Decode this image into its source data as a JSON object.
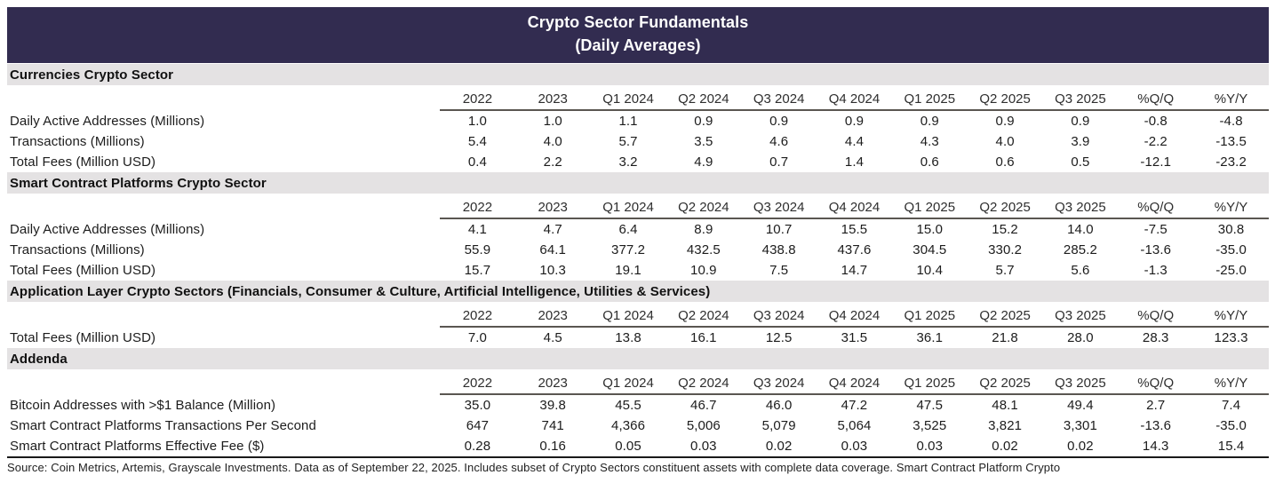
{
  "title": {
    "line1": "Crypto Sector Fundamentals",
    "line2": "(Daily Averages)"
  },
  "chart_data": {
    "type": "table",
    "title": "Crypto Sector Fundamentals (Daily Averages)",
    "columns": [
      "2022",
      "2023",
      "Q1 2024",
      "Q2 2024",
      "Q3 2024",
      "Q4 2024",
      "Q1 2025",
      "Q2 2025",
      "Q3 2025",
      "%Q/Q",
      "%Y/Y"
    ],
    "sections": [
      {
        "header": "Currencies Crypto Sector",
        "rows": [
          {
            "label": "Daily Active Addresses (Millions)",
            "values": [
              "1.0",
              "1.0",
              "1.1",
              "0.9",
              "0.9",
              "0.9",
              "0.9",
              "0.9",
              "0.9",
              "-0.8",
              "-4.8"
            ]
          },
          {
            "label": "Transactions (Millions)",
            "values": [
              "5.4",
              "4.0",
              "5.7",
              "3.5",
              "4.6",
              "4.4",
              "4.3",
              "4.0",
              "3.9",
              "-2.2",
              "-13.5"
            ]
          },
          {
            "label": "Total Fees (Million USD)",
            "values": [
              "0.4",
              "2.2",
              "3.2",
              "4.9",
              "0.7",
              "1.4",
              "0.6",
              "0.6",
              "0.5",
              "-12.1",
              "-23.2"
            ]
          }
        ]
      },
      {
        "header": "Smart Contract Platforms Crypto Sector",
        "rows": [
          {
            "label": "Daily Active Addresses (Millions)",
            "values": [
              "4.1",
              "4.7",
              "6.4",
              "8.9",
              "10.7",
              "15.5",
              "15.0",
              "15.2",
              "14.0",
              "-7.5",
              "30.8"
            ]
          },
          {
            "label": "Transactions (Millions)",
            "values": [
              "55.9",
              "64.1",
              "377.2",
              "432.5",
              "438.8",
              "437.6",
              "304.5",
              "330.2",
              "285.2",
              "-13.6",
              "-35.0"
            ]
          },
          {
            "label": "Total Fees (Million USD)",
            "values": [
              "15.7",
              "10.3",
              "19.1",
              "10.9",
              "7.5",
              "14.7",
              "10.4",
              "5.7",
              "5.6",
              "-1.3",
              "-25.0"
            ]
          }
        ]
      },
      {
        "header": "Application Layer Crypto Sectors (Financials, Consumer & Culture, Artificial Intelligence, Utilities & Services)",
        "rows": [
          {
            "label": "Total Fees (Million USD)",
            "values": [
              "7.0",
              "4.5",
              "13.8",
              "16.1",
              "12.5",
              "31.5",
              "36.1",
              "21.8",
              "28.0",
              "28.3",
              "123.3"
            ]
          }
        ]
      },
      {
        "header": "Addenda",
        "rows": [
          {
            "label": "Bitcoin Addresses with >$1 Balance (Million)",
            "values": [
              "35.0",
              "39.8",
              "45.5",
              "46.7",
              "46.0",
              "47.2",
              "47.5",
              "48.1",
              "49.4",
              "2.7",
              "7.4"
            ]
          },
          {
            "label": "Smart Contract Platforms Transactions Per Second",
            "values": [
              "647",
              "741",
              "4,366",
              "5,006",
              "5,079",
              "5,064",
              "3,525",
              "3,821",
              "3,301",
              "-13.6",
              "-35.0"
            ]
          },
          {
            "label": "Smart Contract Platforms Effective Fee ($)",
            "values": [
              "0.28",
              "0.16",
              "0.05",
              "0.03",
              "0.02",
              "0.03",
              "0.03",
              "0.02",
              "0.02",
              "14.3",
              "15.4"
            ]
          }
        ]
      }
    ]
  },
  "footer": {
    "source": "Source: Coin Metrics, Artemis, Grayscale Investments. Data as of September 22, 2025. Includes subset of Crypto Sectors constituent assets with complete data coverage. Smart Contract Platform Crypto"
  },
  "colors": {
    "title_bg": "#322C50",
    "title_text": "#FFFFFF",
    "section_bg": "#E4E2E3",
    "body_text": "#1C1C1C",
    "header_underline": "#5A5651",
    "footer_rule": "#1A1A1A"
  }
}
